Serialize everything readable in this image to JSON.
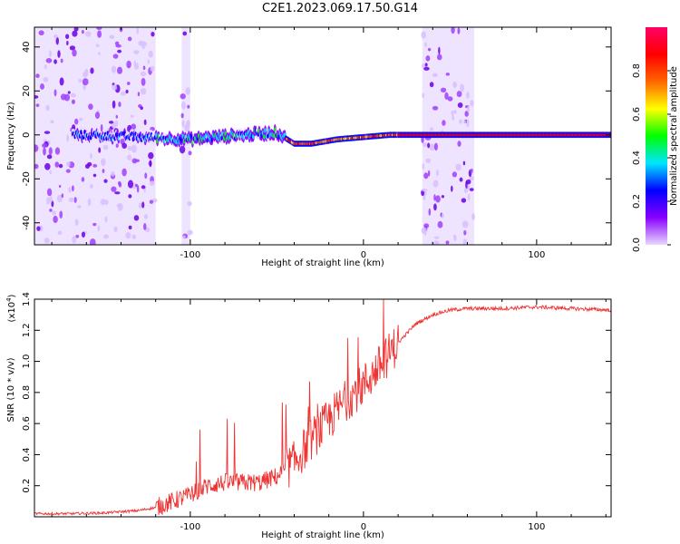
{
  "figure_title": "C2E1.2023.069.17.50.G14",
  "chart_data": [
    {
      "type": "heatmap",
      "title": "",
      "xlabel": "Height of straight line (km)",
      "ylabel": "Frequency (Hz)",
      "xlim": [
        -190,
        143
      ],
      "ylim": [
        -50,
        49
      ],
      "x_ticks": [
        -100,
        0,
        100
      ],
      "y_ticks": [
        -40,
        -20,
        0,
        20,
        40
      ],
      "colorbar": {
        "label": "Normalized spectral amplitude",
        "range": [
          0,
          1
        ],
        "ticks": [
          0.0,
          0.2,
          0.4,
          0.6,
          0.8
        ],
        "colormap": [
          "#e8d8ff",
          "#8800ff",
          "#0000ff",
          "#00e5ff",
          "#00ff00",
          "#ffff00",
          "#ff6600",
          "#ff0000",
          "#ff0066"
        ]
      },
      "ridge_frequency": [
        {
          "x": -165,
          "f": 0.0
        },
        {
          "x": -130,
          "f": -1.0
        },
        {
          "x": -100,
          "f": -2.0
        },
        {
          "x": -70,
          "f": 0.0
        },
        {
          "x": -50,
          "f": 1.0
        },
        {
          "x": -40,
          "f": -4.0
        },
        {
          "x": -30,
          "f": -4.0
        },
        {
          "x": -15,
          "f": -2.0
        },
        {
          "x": 0,
          "f": -1.0
        },
        {
          "x": 15,
          "f": 0.0
        },
        {
          "x": 30,
          "f": 0.0
        },
        {
          "x": 70,
          "f": 0.0
        },
        {
          "x": 143,
          "f": 0.0
        }
      ],
      "noise_bands": [
        [
          -190,
          -120
        ],
        [
          -105,
          -100
        ],
        [
          34,
          64
        ]
      ]
    },
    {
      "type": "line",
      "title": "",
      "xlabel": "Height of straight line (km)",
      "ylabel": "SNR (10 * v/v)",
      "y_multiplier": "(x10",
      "y_multiplier_exp": "4",
      "xlim": [
        -190,
        143
      ],
      "ylim": [
        0,
        1.4
      ],
      "x_ticks": [
        -100,
        0,
        100
      ],
      "y_ticks": [
        0.2,
        0.4,
        0.6,
        0.8,
        1.0,
        1.2,
        1.4
      ],
      "series": [
        {
          "color": "#ee3333",
          "x": [
            -190,
            -170,
            -150,
            -130,
            -120,
            -110,
            -100,
            -90,
            -80,
            -70,
            -60,
            -50,
            -40,
            -30,
            -20,
            -10,
            0,
            10,
            20,
            30,
            40,
            50,
            60,
            80,
            100,
            120,
            143
          ],
          "y": [
            0.02,
            0.02,
            0.025,
            0.04,
            0.06,
            0.1,
            0.14,
            0.2,
            0.22,
            0.22,
            0.22,
            0.26,
            0.35,
            0.5,
            0.62,
            0.75,
            0.85,
            0.98,
            1.12,
            1.24,
            1.3,
            1.33,
            1.34,
            1.34,
            1.35,
            1.34,
            1.33
          ]
        }
      ]
    }
  ]
}
